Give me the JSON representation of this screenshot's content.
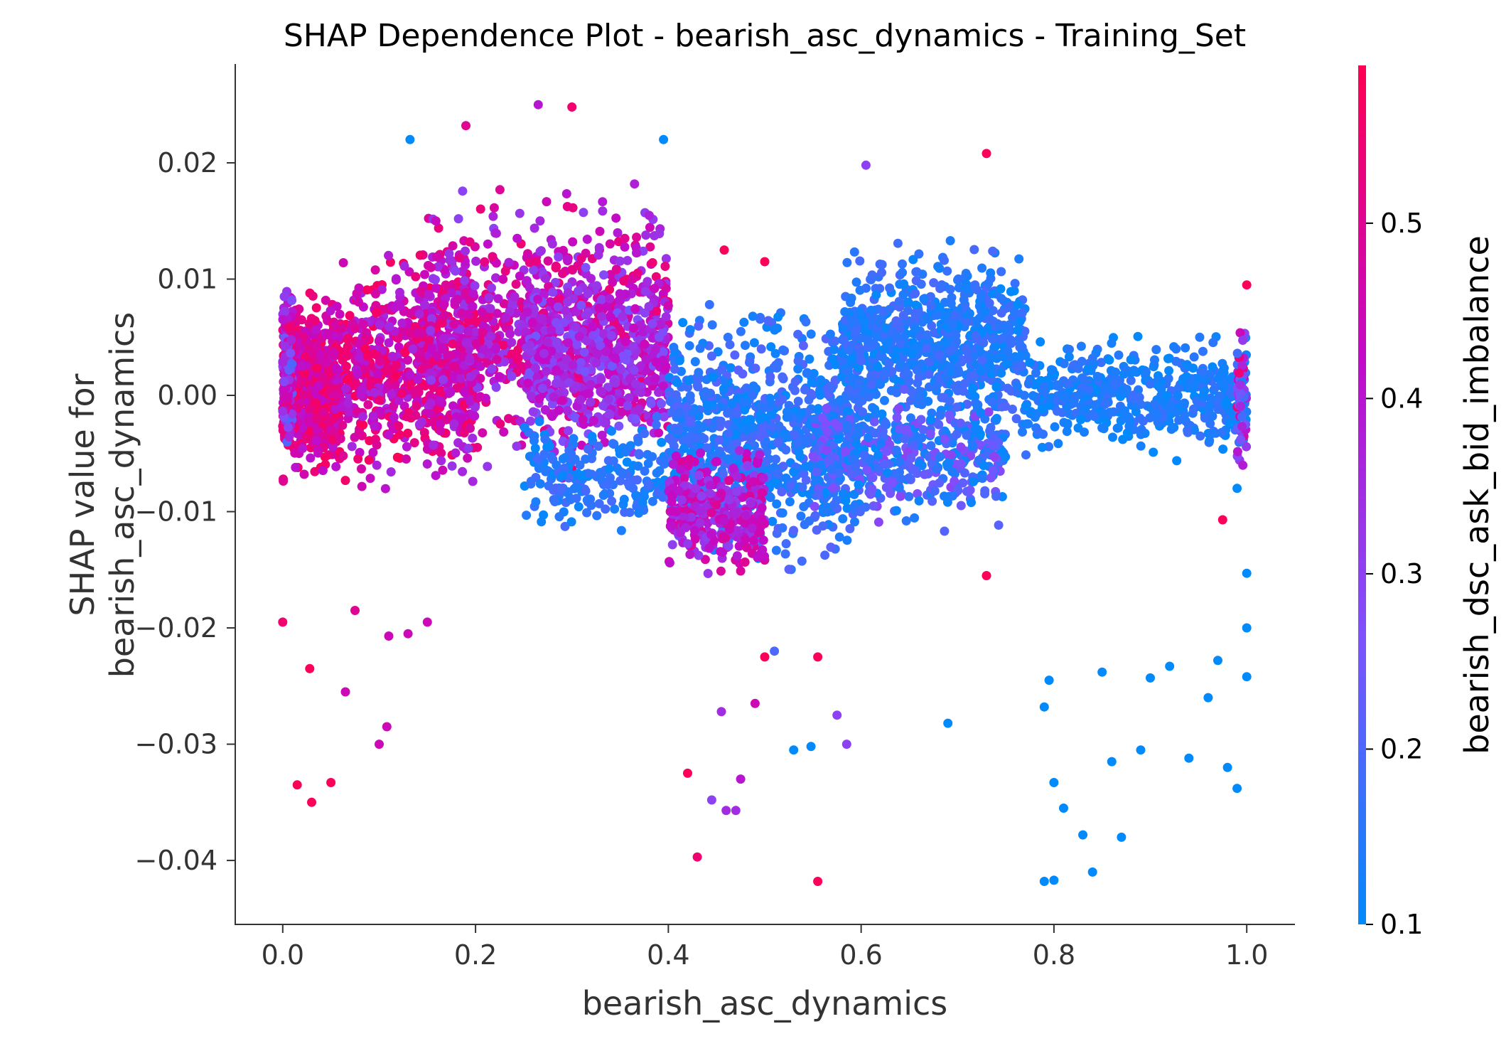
{
  "chart_data": {
    "type": "scatter",
    "title": "SHAP Dependence Plot - bearish_asc_dynamics - Training_Set",
    "xlabel": "bearish_asc_dynamics",
    "ylabel_lines": [
      "SHAP value for",
      "bearish_asc_dynamics"
    ],
    "xlim": [
      -0.05,
      1.05
    ],
    "ylim": [
      -0.0455,
      0.0285
    ],
    "xticks": [
      0.0,
      0.2,
      0.4,
      0.6,
      0.8,
      1.0
    ],
    "xtick_labels": [
      "0.0",
      "0.2",
      "0.4",
      "0.6",
      "0.8",
      "1.0"
    ],
    "yticks": [
      0.02,
      0.01,
      0.0,
      -0.01,
      -0.02,
      -0.03,
      -0.04
    ],
    "ytick_labels": [
      "0.02",
      "0.01",
      "0.00",
      "−0.01",
      "−0.02",
      "−0.03",
      "−0.04"
    ],
    "grid": false,
    "colorbar": {
      "label": "bearish_dsc_ask_bid_imbalance",
      "range": [
        0.1,
        0.59
      ],
      "ticks": [
        0.1,
        0.2,
        0.3,
        0.4,
        0.5
      ],
      "tick_labels": [
        "0.1",
        "0.2",
        "0.3",
        "0.4",
        "0.5"
      ],
      "colormap": [
        "#008afb",
        "#7c52ff",
        "#c30ac7",
        "#ff0052"
      ]
    },
    "clusters": [
      {
        "x": [
          0.0,
          0.06
        ],
        "y": [
          -0.009,
          0.011
        ],
        "c": [
          0.4,
          0.58
        ],
        "n": 600
      },
      {
        "x": [
          0.0,
          0.01
        ],
        "y": [
          -0.007,
          0.012
        ],
        "c": [
          0.2,
          0.55
        ],
        "n": 150
      },
      {
        "x": [
          0.06,
          0.2
        ],
        "y": [
          -0.009,
          0.014
        ],
        "c": [
          0.35,
          0.58
        ],
        "n": 700
      },
      {
        "x": [
          0.15,
          0.4
        ],
        "y": [
          -0.008,
          0.019
        ],
        "c": [
          0.3,
          0.55
        ],
        "n": 900
      },
      {
        "x": [
          0.25,
          0.4
        ],
        "y": [
          -0.006,
          0.012
        ],
        "c": [
          0.25,
          0.45
        ],
        "n": 400
      },
      {
        "x": [
          0.25,
          0.4
        ],
        "y": [
          -0.013,
          -0.001
        ],
        "c": [
          0.1,
          0.2
        ],
        "n": 200
      },
      {
        "x": [
          0.4,
          0.6
        ],
        "y": [
          -0.016,
          0.009
        ],
        "c": [
          0.1,
          0.22
        ],
        "n": 900
      },
      {
        "x": [
          0.4,
          0.5
        ],
        "y": [
          -0.016,
          -0.004
        ],
        "c": [
          0.3,
          0.5
        ],
        "n": 350
      },
      {
        "x": [
          0.58,
          0.77
        ],
        "y": [
          -0.005,
          0.014
        ],
        "c": [
          0.1,
          0.2
        ],
        "n": 800
      },
      {
        "x": [
          0.55,
          0.75
        ],
        "y": [
          -0.012,
          0.002
        ],
        "c": [
          0.1,
          0.3
        ],
        "n": 450
      },
      {
        "x": [
          0.77,
          1.0
        ],
        "y": [
          -0.006,
          0.006
        ],
        "c": [
          0.1,
          0.18
        ],
        "n": 500
      },
      {
        "x": [
          0.99,
          1.0
        ],
        "y": [
          -0.008,
          0.007
        ],
        "c": [
          0.1,
          0.55
        ],
        "n": 60
      }
    ],
    "outliers": [
      {
        "x": 0.0,
        "y": -0.0195,
        "c": 0.55
      },
      {
        "x": 0.015,
        "y": -0.0335,
        "c": 0.58
      },
      {
        "x": 0.03,
        "y": -0.035,
        "c": 0.58
      },
      {
        "x": 0.028,
        "y": -0.0235,
        "c": 0.58
      },
      {
        "x": 0.05,
        "y": -0.0333,
        "c": 0.58
      },
      {
        "x": 0.065,
        "y": -0.0255,
        "c": 0.45
      },
      {
        "x": 0.075,
        "y": -0.0185,
        "c": 0.5
      },
      {
        "x": 0.1,
        "y": -0.03,
        "c": 0.45
      },
      {
        "x": 0.108,
        "y": -0.0285,
        "c": 0.45
      },
      {
        "x": 0.11,
        "y": -0.0207,
        "c": 0.45
      },
      {
        "x": 0.13,
        "y": -0.0205,
        "c": 0.45
      },
      {
        "x": 0.15,
        "y": -0.0195,
        "c": 0.45
      },
      {
        "x": 0.132,
        "y": 0.022,
        "c": 0.1
      },
      {
        "x": 0.19,
        "y": 0.0232,
        "c": 0.5
      },
      {
        "x": 0.265,
        "y": 0.025,
        "c": 0.4
      },
      {
        "x": 0.3,
        "y": 0.0248,
        "c": 0.55
      },
      {
        "x": 0.395,
        "y": 0.022,
        "c": 0.1
      },
      {
        "x": 0.42,
        "y": -0.0325,
        "c": 0.58
      },
      {
        "x": 0.43,
        "y": -0.0397,
        "c": 0.55
      },
      {
        "x": 0.445,
        "y": -0.0348,
        "c": 0.3
      },
      {
        "x": 0.455,
        "y": -0.0272,
        "c": 0.35
      },
      {
        "x": 0.46,
        "y": -0.0357,
        "c": 0.35
      },
      {
        "x": 0.47,
        "y": -0.0357,
        "c": 0.35
      },
      {
        "x": 0.475,
        "y": -0.033,
        "c": 0.4
      },
      {
        "x": 0.49,
        "y": -0.0265,
        "c": 0.45
      },
      {
        "x": 0.5,
        "y": -0.0225,
        "c": 0.58
      },
      {
        "x": 0.51,
        "y": -0.022,
        "c": 0.2
      },
      {
        "x": 0.53,
        "y": -0.0305,
        "c": 0.1
      },
      {
        "x": 0.548,
        "y": -0.0302,
        "c": 0.1
      },
      {
        "x": 0.555,
        "y": -0.0418,
        "c": 0.58
      },
      {
        "x": 0.555,
        "y": -0.0225,
        "c": 0.58
      },
      {
        "x": 0.575,
        "y": -0.0275,
        "c": 0.3
      },
      {
        "x": 0.585,
        "y": -0.03,
        "c": 0.3
      },
      {
        "x": 0.605,
        "y": 0.0198,
        "c": 0.3
      },
      {
        "x": 0.458,
        "y": 0.0125,
        "c": 0.58
      },
      {
        "x": 0.5,
        "y": 0.0115,
        "c": 0.58
      },
      {
        "x": 0.69,
        "y": -0.0282,
        "c": 0.1
      },
      {
        "x": 0.73,
        "y": 0.0208,
        "c": 0.58
      },
      {
        "x": 0.73,
        "y": -0.0155,
        "c": 0.58
      },
      {
        "x": 0.79,
        "y": -0.0268,
        "c": 0.1
      },
      {
        "x": 0.79,
        "y": -0.0418,
        "c": 0.1
      },
      {
        "x": 0.8,
        "y": -0.0417,
        "c": 0.1
      },
      {
        "x": 0.8,
        "y": -0.0333,
        "c": 0.1
      },
      {
        "x": 0.81,
        "y": -0.0355,
        "c": 0.1
      },
      {
        "x": 0.795,
        "y": -0.0245,
        "c": 0.1
      },
      {
        "x": 0.83,
        "y": -0.0378,
        "c": 0.1
      },
      {
        "x": 0.84,
        "y": -0.041,
        "c": 0.1
      },
      {
        "x": 0.85,
        "y": -0.0238,
        "c": 0.1
      },
      {
        "x": 0.86,
        "y": -0.0315,
        "c": 0.1
      },
      {
        "x": 0.87,
        "y": -0.038,
        "c": 0.1
      },
      {
        "x": 0.89,
        "y": -0.0305,
        "c": 0.1
      },
      {
        "x": 0.9,
        "y": -0.0243,
        "c": 0.1
      },
      {
        "x": 0.92,
        "y": -0.0233,
        "c": 0.1
      },
      {
        "x": 0.94,
        "y": -0.0312,
        "c": 0.1
      },
      {
        "x": 0.96,
        "y": -0.026,
        "c": 0.1
      },
      {
        "x": 0.97,
        "y": -0.0228,
        "c": 0.1
      },
      {
        "x": 0.98,
        "y": -0.032,
        "c": 0.1
      },
      {
        "x": 0.99,
        "y": -0.0338,
        "c": 0.1
      },
      {
        "x": 1.0,
        "y": -0.0242,
        "c": 0.1
      },
      {
        "x": 1.0,
        "y": -0.0153,
        "c": 0.1
      },
      {
        "x": 1.0,
        "y": -0.02,
        "c": 0.1
      },
      {
        "x": 0.975,
        "y": -0.0107,
        "c": 0.58
      },
      {
        "x": 1.0,
        "y": 0.0095,
        "c": 0.58
      },
      {
        "x": 0.99,
        "y": -0.008,
        "c": 0.1
      }
    ]
  }
}
